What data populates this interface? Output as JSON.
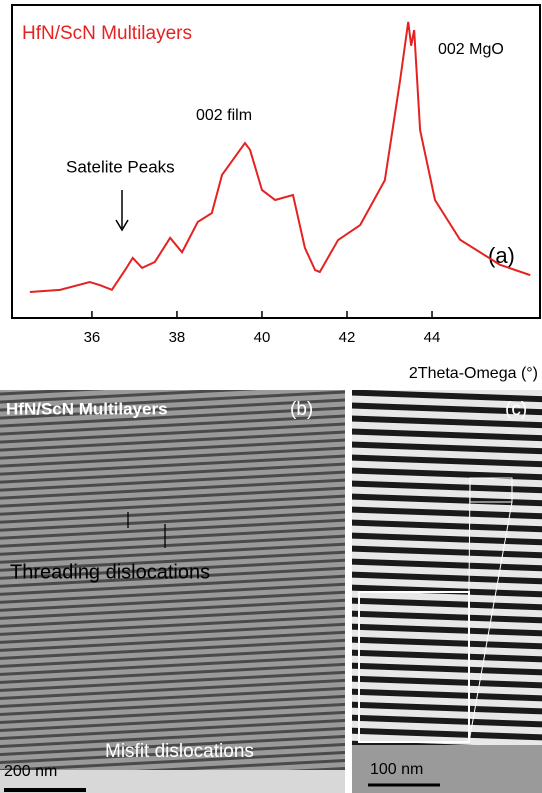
{
  "chart_data": {
    "type": "line",
    "title": "HfN/ScN Multilayers",
    "x_label": "2Theta-Omega (°)",
    "annotations": [
      "Satelite Peaks",
      "002 film",
      "002 MgO",
      "(a)"
    ],
    "x": [
      34.54,
      35.25,
      35.95,
      36.19,
      36.47,
      36.78,
      36.96,
      37.18,
      37.48,
      37.84,
      38.12,
      38.49,
      38.82,
      39.06,
      39.6,
      39.72,
      40.0,
      40.31,
      40.73,
      41.01,
      41.25,
      41.36,
      41.79,
      42.31,
      42.89,
      43.25,
      43.44,
      43.51,
      43.58,
      43.72,
      44.07,
      44.66,
      45.6,
      46.31
    ],
    "series": [
      {
        "color": "#e52222",
        "values": [
          8.3,
          9,
          11.5,
          10.5,
          9,
          15.3,
          19.2,
          16,
          17.9,
          25.6,
          21,
          30.7,
          33.5,
          45.7,
          55.9,
          53.7,
          40.9,
          37.7,
          39.3,
          22.4,
          15.3,
          14.7,
          24.9,
          29.7,
          44,
          76,
          94.6,
          87,
          92,
          60,
          37.7,
          25,
          17,
          13.7
        ]
      }
    ],
    "xlim": [
      34.12,
      46.54
    ],
    "xticks": [
      36,
      38,
      40,
      42,
      44
    ],
    "ylim": [
      0,
      100
    ]
  },
  "panels": [
    {
      "texts": [
        "HfN/ScN Multilayers",
        "(b)",
        "Threading dislocations",
        "Misfit dislocations",
        "200 nm"
      ]
    },
    {
      "texts": [
        "(c)",
        "100 nm"
      ]
    }
  ]
}
